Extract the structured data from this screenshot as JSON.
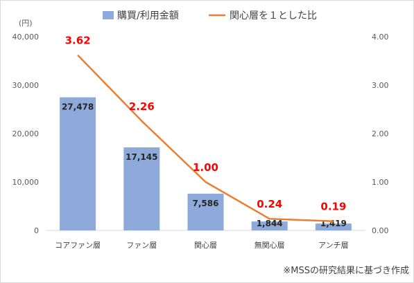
{
  "chart_data": {
    "type": "bar+line",
    "categories": [
      "コアファン層",
      "ファン層",
      "関心層",
      "無関心層",
      "アンチ層"
    ],
    "series": [
      {
        "name": "購買/利用金額",
        "kind": "bar",
        "axis": "left",
        "color": "#8eaadb",
        "values": [
          27478,
          17145,
          7586,
          1844,
          1419
        ],
        "labels": [
          "27,478",
          "17,145",
          "7,586",
          "1,844",
          "1,419"
        ]
      },
      {
        "name": "関心層を１とした比",
        "kind": "line",
        "axis": "right",
        "color": "#ed7d31",
        "values": [
          3.62,
          2.26,
          1.0,
          0.24,
          0.19
        ],
        "labels": [
          "3.62",
          "2.26",
          "1.00",
          "0.24",
          "0.19"
        ]
      }
    ],
    "y_left": {
      "unit_label": "(円)",
      "range": [
        0,
        40000
      ],
      "ticks": [
        0,
        10000,
        20000,
        30000,
        40000
      ],
      "tick_labels": [
        "0",
        "10,000",
        "20,000",
        "30,000",
        "40,000"
      ]
    },
    "y_right": {
      "range": [
        0,
        4
      ],
      "ticks": [
        0,
        1,
        2,
        3,
        4
      ],
      "tick_labels": [
        "0.00",
        "1.00",
        "2.00",
        "3.00",
        "4.00"
      ]
    },
    "grid": false,
    "legend_position": "top",
    "note": "※MSSの研究結果に基づき作成"
  }
}
